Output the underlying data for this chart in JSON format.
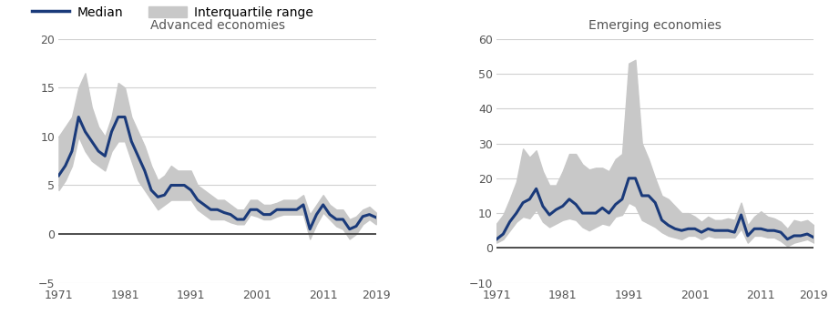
{
  "years": [
    1971,
    1972,
    1973,
    1974,
    1975,
    1976,
    1977,
    1978,
    1979,
    1980,
    1981,
    1982,
    1983,
    1984,
    1985,
    1986,
    1987,
    1988,
    1989,
    1990,
    1991,
    1992,
    1993,
    1994,
    1995,
    1996,
    1997,
    1998,
    1999,
    2000,
    2001,
    2002,
    2003,
    2004,
    2005,
    2006,
    2007,
    2008,
    2009,
    2010,
    2011,
    2012,
    2013,
    2014,
    2015,
    2016,
    2017,
    2018,
    2019
  ],
  "adv_median": [
    6.0,
    7.0,
    8.5,
    12.0,
    10.5,
    9.5,
    8.5,
    8.0,
    10.5,
    12.0,
    12.0,
    9.5,
    8.0,
    6.5,
    4.5,
    3.8,
    4.0,
    5.0,
    5.0,
    5.0,
    4.5,
    3.5,
    3.0,
    2.5,
    2.5,
    2.2,
    2.0,
    1.5,
    1.5,
    2.5,
    2.5,
    2.0,
    2.0,
    2.5,
    2.5,
    2.5,
    2.5,
    3.0,
    0.5,
    2.0,
    3.0,
    2.0,
    1.5,
    1.5,
    0.5,
    0.8,
    1.8,
    2.0,
    1.7
  ],
  "adv_q1": [
    4.5,
    5.5,
    7.0,
    10.0,
    8.5,
    7.5,
    7.0,
    6.5,
    8.5,
    9.5,
    9.5,
    7.5,
    5.5,
    4.5,
    3.5,
    2.5,
    3.0,
    3.5,
    3.5,
    3.5,
    3.5,
    2.5,
    2.0,
    1.5,
    1.5,
    1.5,
    1.2,
    1.0,
    1.0,
    2.0,
    1.8,
    1.5,
    1.5,
    1.8,
    2.0,
    2.0,
    2.0,
    2.0,
    -0.5,
    1.0,
    2.2,
    1.5,
    0.8,
    0.5,
    -0.5,
    0.0,
    1.0,
    1.5,
    1.0
  ],
  "adv_q3": [
    10.0,
    11.0,
    12.0,
    15.0,
    16.5,
    13.0,
    11.0,
    10.0,
    12.0,
    15.5,
    15.0,
    12.0,
    10.5,
    9.0,
    7.0,
    5.5,
    6.0,
    7.0,
    6.5,
    6.5,
    6.5,
    5.0,
    4.5,
    4.0,
    3.5,
    3.5,
    3.0,
    2.5,
    2.5,
    3.5,
    3.5,
    3.0,
    3.0,
    3.2,
    3.5,
    3.5,
    3.5,
    4.0,
    2.0,
    3.0,
    4.0,
    3.0,
    2.5,
    2.5,
    1.5,
    1.8,
    2.5,
    2.8,
    2.2
  ],
  "em_median": [
    2.5,
    4.0,
    7.5,
    10.0,
    13.0,
    14.0,
    17.0,
    12.0,
    9.5,
    11.0,
    12.0,
    14.0,
    12.5,
    10.0,
    10.0,
    10.0,
    11.5,
    10.0,
    12.5,
    14.0,
    20.0,
    20.0,
    15.0,
    15.0,
    13.0,
    8.0,
    6.5,
    5.5,
    5.0,
    5.5,
    5.5,
    4.5,
    5.5,
    5.0,
    5.0,
    5.0,
    4.5,
    9.5,
    3.5,
    5.5,
    5.5,
    5.0,
    5.0,
    4.5,
    2.5,
    3.5,
    3.5,
    4.0,
    3.0
  ],
  "em_q1": [
    1.5,
    2.5,
    5.0,
    7.5,
    9.0,
    8.5,
    11.0,
    7.5,
    6.0,
    7.0,
    8.0,
    8.5,
    8.0,
    6.0,
    5.0,
    6.0,
    7.0,
    6.5,
    9.0,
    9.5,
    13.0,
    12.0,
    8.0,
    7.0,
    6.0,
    4.5,
    3.5,
    3.0,
    2.5,
    3.5,
    3.5,
    2.5,
    3.5,
    3.0,
    3.0,
    3.0,
    3.0,
    5.5,
    1.5,
    3.5,
    3.5,
    3.0,
    3.0,
    2.0,
    0.5,
    1.5,
    2.0,
    2.5,
    1.5
  ],
  "em_q3": [
    7.0,
    9.5,
    14.0,
    19.0,
    28.5,
    26.0,
    28.0,
    22.0,
    18.0,
    18.0,
    22.0,
    27.0,
    27.0,
    24.0,
    22.5,
    23.0,
    23.0,
    22.0,
    25.5,
    27.0,
    53.0,
    54.0,
    30.0,
    25.5,
    20.0,
    15.0,
    14.0,
    12.0,
    10.0,
    10.0,
    9.0,
    7.5,
    9.0,
    8.0,
    8.0,
    8.5,
    8.0,
    13.0,
    6.5,
    9.0,
    10.5,
    9.0,
    8.5,
    7.5,
    5.5,
    8.0,
    7.5,
    8.0,
    6.5
  ],
  "adv_title": "Advanced economies",
  "em_title": "Emerging economies",
  "legend_median": "Median",
  "legend_iqr": "Interquartile range",
  "adv_ylim": [
    -5,
    20
  ],
  "em_ylim": [
    -10,
    60
  ],
  "adv_yticks": [
    -5,
    0,
    5,
    10,
    15,
    20
  ],
  "em_yticks": [
    -10,
    0,
    10,
    20,
    30,
    40,
    50,
    60
  ],
  "xticks": [
    1971,
    1981,
    1991,
    2001,
    2011,
    2019
  ],
  "median_color": "#1a3a7a",
  "iqr_color": "#c8c8c8",
  "zero_line_color": "#333333",
  "grid_color": "#d0d0d0",
  "bg_color": "#ffffff",
  "title_fontsize": 10,
  "tick_fontsize": 9,
  "legend_fontsize": 10
}
